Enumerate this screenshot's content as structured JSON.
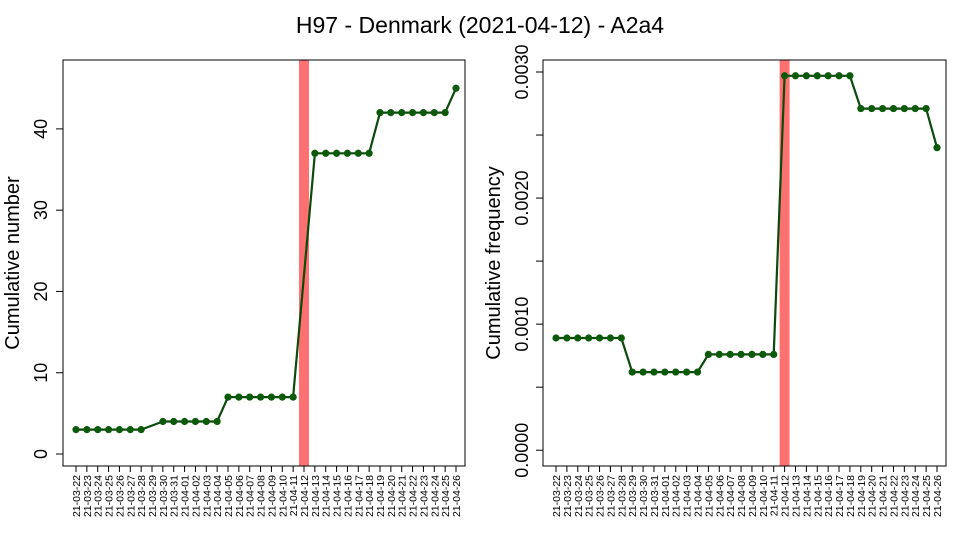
{
  "chart_data": {
    "title": "H97 - Denmark (2021-04-12) - A2a4",
    "dates": [
      "21-03-22",
      "21-03-23",
      "21-03-24",
      "21-03-25",
      "21-03-26",
      "21-03-27",
      "21-03-28",
      "21-03-29",
      "21-03-30",
      "21-03-31",
      "21-04-01",
      "21-04-02",
      "21-04-03",
      "21-04-04",
      "21-04-05",
      "21-04-06",
      "21-04-07",
      "21-04-08",
      "21-04-09",
      "21-04-10",
      "21-04-11",
      "21-04-12",
      "21-04-13",
      "21-04-14",
      "21-04-15",
      "21-04-16",
      "21-04-17",
      "21-04-18",
      "21-04-19",
      "21-04-20",
      "21-04-21",
      "21-04-22",
      "21-04-23",
      "21-04-24",
      "21-04-25",
      "21-04-26"
    ],
    "highlight_date": "21-04-12",
    "colors": {
      "line": "#0a4a0a",
      "point": "#0a5a0a",
      "highlight": "#ff7070",
      "axis": "#000000"
    },
    "panels": [
      {
        "type": "line",
        "ylabel": "Cumulative number",
        "ylim": [
          0,
          47
        ],
        "yticks": [
          0,
          10,
          20,
          30,
          40
        ],
        "ytick_labels": [
          "0",
          "10",
          "20",
          "30",
          "40"
        ],
        "x": [
          "21-03-22",
          "21-03-23",
          "21-03-24",
          "21-03-25",
          "21-03-26",
          "21-03-27",
          "21-03-28",
          "21-03-30",
          "21-03-31",
          "21-04-01",
          "21-04-02",
          "21-04-03",
          "21-04-04",
          "21-04-05",
          "21-04-06",
          "21-04-07",
          "21-04-08",
          "21-04-09",
          "21-04-10",
          "21-04-11",
          "21-04-13",
          "21-04-14",
          "21-04-15",
          "21-04-16",
          "21-04-17",
          "21-04-18",
          "21-04-19",
          "21-04-20",
          "21-04-21",
          "21-04-22",
          "21-04-23",
          "21-04-24",
          "21-04-25",
          "21-04-26"
        ],
        "values": [
          3,
          3,
          3,
          3,
          3,
          3,
          3,
          4,
          4,
          4,
          4,
          4,
          4,
          7,
          7,
          7,
          7,
          7,
          7,
          7,
          37,
          37,
          37,
          37,
          37,
          37,
          42,
          42,
          42,
          42,
          42,
          42,
          42,
          45
        ]
      },
      {
        "type": "line",
        "ylabel": "Cumulative frequency",
        "ylim": [
          -3e-05,
          0.003
        ],
        "yticks": [
          0,
          0.0005,
          0.001,
          0.0015,
          0.002,
          0.0025,
          0.003
        ],
        "ytick_labels": [
          "0.0000",
          "",
          "0.0010",
          "",
          "0.0020",
          "",
          "0.0030"
        ],
        "x": [
          "21-03-22",
          "21-03-23",
          "21-03-24",
          "21-03-25",
          "21-03-26",
          "21-03-27",
          "21-03-28",
          "21-03-29",
          "21-03-30",
          "21-03-31",
          "21-04-01",
          "21-04-02",
          "21-04-03",
          "21-04-04",
          "21-04-05",
          "21-04-06",
          "21-04-07",
          "21-04-08",
          "21-04-09",
          "21-04-10",
          "21-04-11",
          "21-04-12",
          "21-04-13",
          "21-04-14",
          "21-04-15",
          "21-04-16",
          "21-04-17",
          "21-04-18",
          "21-04-19",
          "21-04-20",
          "21-04-21",
          "21-04-22",
          "21-04-23",
          "21-04-24",
          "21-04-25",
          "21-04-26"
        ],
        "values": [
          0.00089,
          0.00089,
          0.00089,
          0.00089,
          0.00089,
          0.00089,
          0.00089,
          0.00062,
          0.00062,
          0.00062,
          0.00062,
          0.00062,
          0.00062,
          0.00062,
          0.00076,
          0.00076,
          0.00076,
          0.00076,
          0.00076,
          0.00076,
          0.00076,
          0.00297,
          0.00297,
          0.00297,
          0.00297,
          0.00297,
          0.00297,
          0.00297,
          0.00271,
          0.00271,
          0.00271,
          0.00271,
          0.00271,
          0.00271,
          0.00271,
          0.0024
        ]
      }
    ]
  }
}
